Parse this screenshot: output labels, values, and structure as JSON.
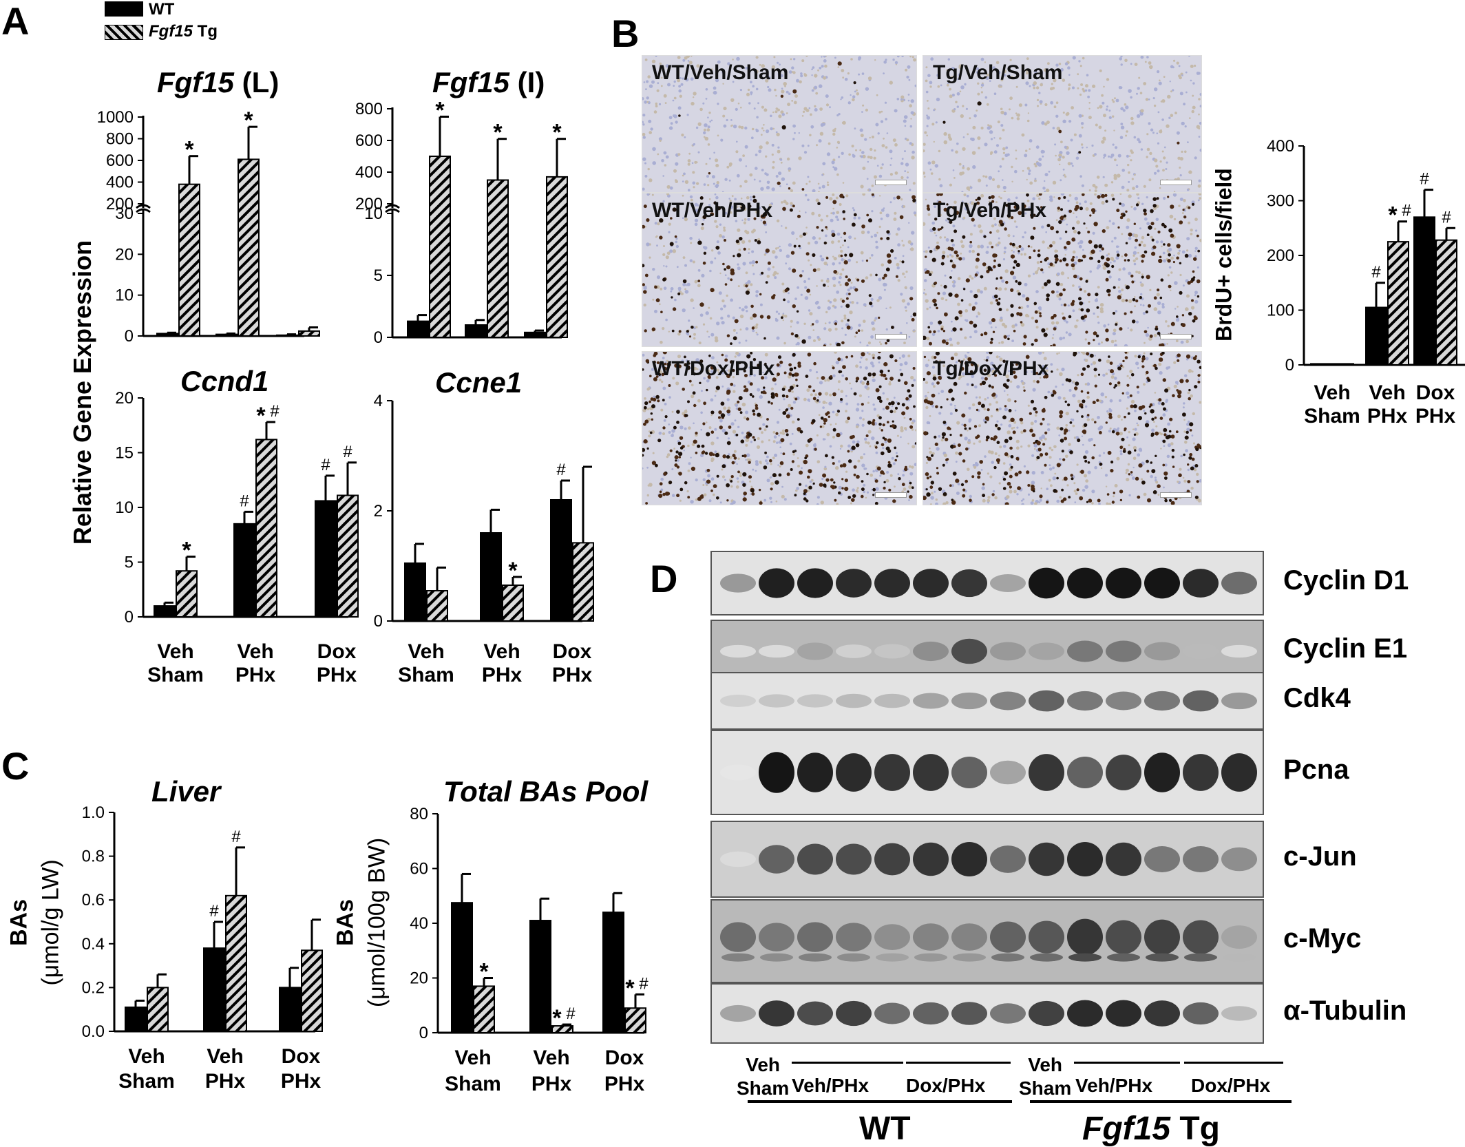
{
  "panel_letters": [
    "A",
    "B",
    "C",
    "D"
  ],
  "legend": {
    "wt_label": "WT",
    "tg_gene": "Fgf15",
    "tg_suffix": " Tg"
  },
  "colors": {
    "wt_fill": "#000000",
    "tg_pattern_stripe": "#000000",
    "tg_pattern_bg": "#d9d9d9"
  },
  "shared": {
    "panel_a_ylabel": "Relative Gene Expression",
    "groups_a": [
      [
        "Veh",
        "Sham"
      ],
      [
        "Veh",
        "PHx"
      ],
      [
        "Dox",
        "PHx"
      ]
    ],
    "sig_star": "*",
    "sig_hash": "#"
  },
  "chart_data": [
    {
      "id": "fgf15-liver",
      "type": "bar",
      "title": "Fgf15",
      "title_suffix": " (L)",
      "categories": [
        "Veh Sham",
        "Veh PHx",
        "Dox PHx"
      ],
      "series": [
        {
          "name": "WT",
          "values": [
            0.6,
            0.4,
            0.2
          ],
          "errors": [
            0.2,
            0.2,
            0.2
          ]
        },
        {
          "name": "Fgf15 Tg",
          "values": [
            380,
            610,
            1.2
          ],
          "errors": [
            260,
            300,
            0.9
          ]
        }
      ],
      "axis_break": {
        "low": [
          0,
          30
        ],
        "high": [
          200,
          1000
        ]
      },
      "yticks_low": [
        0,
        10,
        20,
        30
      ],
      "yticks_high": [
        200,
        400,
        600,
        800,
        1000
      ],
      "annotations": [
        {
          "series": 1,
          "category": 0,
          "text": "*"
        },
        {
          "series": 1,
          "category": 1,
          "text": "*"
        }
      ]
    },
    {
      "id": "fgf15-ileum",
      "type": "bar",
      "title": "Fgf15",
      "title_suffix": " (I)",
      "categories": [
        "Veh Sham",
        "Veh PHx",
        "Dox PHx"
      ],
      "series": [
        {
          "name": "WT",
          "values": [
            1.3,
            1.0,
            0.4
          ],
          "errors": [
            0.5,
            0.4,
            0.15
          ]
        },
        {
          "name": "Fgf15 Tg",
          "values": [
            500,
            350,
            370
          ],
          "errors": [
            250,
            260,
            240
          ]
        }
      ],
      "axis_break": {
        "low": [
          0,
          10
        ],
        "high": [
          200,
          800
        ]
      },
      "yticks_low": [
        0,
        5,
        10
      ],
      "yticks_high": [
        200,
        400,
        600,
        800
      ],
      "annotations": [
        {
          "series": 1,
          "category": 0,
          "text": "*"
        },
        {
          "series": 1,
          "category": 1,
          "text": "*"
        },
        {
          "series": 1,
          "category": 2,
          "text": "*"
        }
      ]
    },
    {
      "id": "ccnd1",
      "type": "bar",
      "title": "Ccnd1",
      "categories": [
        "Veh Sham",
        "Veh PHx",
        "Dox PHx"
      ],
      "series": [
        {
          "name": "WT",
          "values": [
            1.0,
            8.5,
            10.6
          ],
          "errors": [
            0.3,
            1.1,
            2.3
          ]
        },
        {
          "name": "Fgf15 Tg",
          "values": [
            4.2,
            16.2,
            11.1
          ],
          "errors": [
            1.3,
            1.6,
            3.0
          ]
        }
      ],
      "ylim": [
        0,
        20
      ],
      "yticks": [
        0,
        5,
        10,
        15,
        20
      ],
      "annotations": [
        {
          "series": 1,
          "category": 0,
          "text": "*"
        },
        {
          "series": 0,
          "category": 1,
          "text": "#"
        },
        {
          "series": 1,
          "category": 1,
          "text": "*#"
        },
        {
          "series": 0,
          "category": 2,
          "text": "#"
        },
        {
          "series": 1,
          "category": 2,
          "text": "#"
        }
      ]
    },
    {
      "id": "ccne1",
      "type": "bar",
      "title": "Ccne1",
      "categories": [
        "Veh Sham",
        "Veh PHx",
        "Dox PHx"
      ],
      "series": [
        {
          "name": "WT",
          "values": [
            1.05,
            1.6,
            2.2
          ],
          "errors": [
            0.35,
            0.42,
            0.35
          ]
        },
        {
          "name": "Fgf15 Tg",
          "values": [
            0.55,
            0.65,
            1.42
          ],
          "errors": [
            0.42,
            0.15,
            1.38
          ]
        }
      ],
      "ylim": [
        0,
        4
      ],
      "yticks": [
        0,
        2,
        4
      ],
      "annotations": [
        {
          "series": 1,
          "category": 1,
          "text": "*"
        },
        {
          "series": 0,
          "category": 2,
          "text": "#"
        }
      ]
    },
    {
      "id": "brdu",
      "type": "bar",
      "ylabel": "BrdU+ cells/field",
      "categories": [
        "Veh Sham",
        "Veh PHx",
        "Dox PHx"
      ],
      "series": [
        {
          "name": "WT",
          "values": [
            2,
            105,
            270
          ],
          "errors": [
            0,
            45,
            50
          ]
        },
        {
          "name": "Fgf15 Tg",
          "values": [
            2,
            225,
            228
          ],
          "errors": [
            0,
            37,
            22
          ]
        }
      ],
      "ylim": [
        0,
        400
      ],
      "yticks": [
        0,
        100,
        200,
        300,
        400
      ],
      "annotations": [
        {
          "series": 0,
          "category": 1,
          "text": "#"
        },
        {
          "series": 1,
          "category": 1,
          "text": "*#"
        },
        {
          "series": 0,
          "category": 2,
          "text": "#"
        },
        {
          "series": 1,
          "category": 2,
          "text": "#"
        }
      ]
    },
    {
      "id": "bas-liver",
      "type": "bar",
      "title": "Liver",
      "ylabel": "BAs",
      "ylabel2": "(μmol/g LW)",
      "categories": [
        "Veh Sham",
        "Veh PHx",
        "Dox PHx"
      ],
      "series": [
        {
          "name": "WT",
          "values": [
            0.11,
            0.38,
            0.2
          ],
          "errors": [
            0.03,
            0.12,
            0.09
          ]
        },
        {
          "name": "Fgf15 Tg",
          "values": [
            0.2,
            0.62,
            0.37
          ],
          "errors": [
            0.06,
            0.22,
            0.14
          ]
        }
      ],
      "ylim": [
        0,
        1.0
      ],
      "yticks": [
        0.0,
        0.2,
        0.4,
        0.6,
        0.8,
        1.0
      ],
      "annotations": [
        {
          "series": 0,
          "category": 1,
          "text": "#"
        },
        {
          "series": 1,
          "category": 1,
          "text": "#"
        }
      ]
    },
    {
      "id": "bas-total-pool",
      "type": "bar",
      "title": "Total BAs Pool",
      "ylabel": "BAs",
      "ylabel2": "(μmol/100g BW)",
      "categories": [
        "Veh Sham",
        "Veh PHx",
        "Dox PHx"
      ],
      "series": [
        {
          "name": "WT",
          "values": [
            47.5,
            41,
            44
          ],
          "errors": [
            10.5,
            8,
            7
          ]
        },
        {
          "name": "Fgf15 Tg",
          "values": [
            17,
            2.5,
            9
          ],
          "errors": [
            3,
            0.5,
            5
          ]
        }
      ],
      "ylim": [
        0,
        80
      ],
      "yticks": [
        0,
        20,
        40,
        60,
        80
      ],
      "annotations": [
        {
          "series": 1,
          "category": 0,
          "text": "*"
        },
        {
          "series": 1,
          "category": 1,
          "text": "*#"
        },
        {
          "series": 1,
          "category": 2,
          "text": "*#"
        }
      ]
    }
  ],
  "micrographs": [
    {
      "label": "WT/Veh/Sham",
      "density": 0.02
    },
    {
      "label": "Tg/Veh/Sham",
      "density": 0.01
    },
    {
      "label": "WT/Veh/PHx",
      "density": 0.35
    },
    {
      "label": "Tg/Veh/PHx",
      "density": 0.75
    },
    {
      "label": "WT/Dox/PHx",
      "density": 0.85
    },
    {
      "label": "Tg/Dox/PHx",
      "density": 0.8
    }
  ],
  "blots": {
    "proteins": [
      "Cyclin D1",
      "Cyclin E1",
      "Cdk4",
      "Pcna",
      "c-Jun",
      "c-Myc",
      "α-Tubulin"
    ],
    "lane_groups": [
      {
        "line1": "Veh",
        "line2": "Sham"
      },
      {
        "line1": "Veh/PHx"
      },
      {
        "line1": "Dox/PHx"
      },
      {
        "line1": "Veh",
        "line2": "Sham"
      },
      {
        "line1": "Veh/PHx"
      },
      {
        "line1": "Dox/PHx"
      }
    ],
    "genotypes": {
      "wt": "WT",
      "tg_gene": "Fgf15",
      "tg_suffix": " Tg"
    }
  }
}
